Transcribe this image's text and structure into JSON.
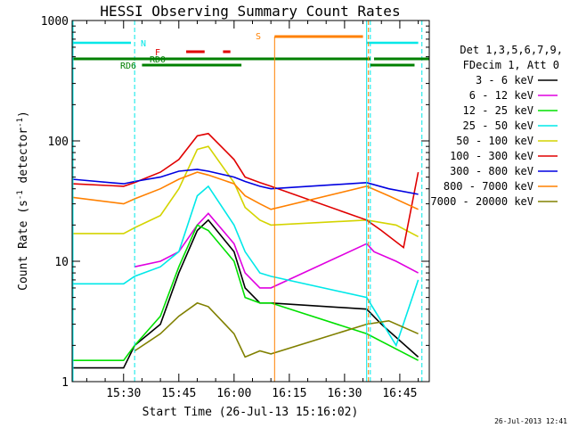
{
  "chart_data": {
    "type": "line",
    "title": "HESSI Observing Summary Count Rates",
    "xlabel": "Start Time (26-Jul-13 15:16:02)",
    "ylabel": "Count Rate (s⁻¹ detector⁻¹)",
    "ylabel_parts": {
      "pre": "Count Rate (s",
      "sup1": "-1",
      "mid": " detector",
      "sup2": "-1",
      "post": ")"
    },
    "y_scale": "log",
    "ylim": [
      1,
      1000
    ],
    "y_ticks": [
      {
        "value": 1,
        "label": "1"
      },
      {
        "value": 10,
        "label": "10"
      },
      {
        "value": 100,
        "label": "100"
      },
      {
        "value": 1000,
        "label": "1000"
      }
    ],
    "xlim": [
      "15:16:02",
      "16:53:00"
    ],
    "x_ticks": [
      "15:30",
      "15:45",
      "16:00",
      "16:15",
      "16:30",
      "16:45"
    ],
    "timestamp": "26-Jul-2013 12:41",
    "legend_header": [
      "Det 1,3,5,6,7,9,",
      "FDecim 1, Att 0"
    ],
    "legend_position": "right",
    "series": [
      {
        "name": "3 - 6 keV",
        "color": "#000000",
        "x": [
          "15:16",
          "15:30",
          "15:33",
          "15:40",
          "15:45",
          "15:50",
          "15:53",
          "16:00",
          "16:03",
          "16:07",
          "16:10",
          "16:36",
          "16:40",
          "16:50"
        ],
        "values": [
          1.3,
          1.3,
          2.0,
          3.0,
          8.0,
          18,
          22,
          12,
          6,
          4.5,
          4.5,
          4.0,
          3.0,
          1.6
        ]
      },
      {
        "name": "6 - 12 keV",
        "color": "#e000e0",
        "x": [
          "15:33",
          "15:40",
          "15:45",
          "15:50",
          "15:53",
          "16:00",
          "16:03",
          "16:07",
          "16:10",
          "16:36",
          "16:38",
          "16:44",
          "16:50"
        ],
        "values": [
          9,
          10,
          12,
          20,
          25,
          14,
          8,
          6,
          6,
          14,
          12,
          10,
          8
        ]
      },
      {
        "name": "12 - 25 keV",
        "color": "#00e000",
        "x": [
          "15:16",
          "15:30",
          "15:33",
          "15:40",
          "15:45",
          "15:50",
          "15:53",
          "16:00",
          "16:03",
          "16:07",
          "16:10",
          "16:36",
          "16:50"
        ],
        "values": [
          1.5,
          1.5,
          2.0,
          3.5,
          9,
          20,
          18,
          10,
          5,
          4.5,
          4.5,
          2.5,
          1.5
        ]
      },
      {
        "name": "25 - 50 keV",
        "color": "#00e8e8",
        "x": [
          "15:16",
          "15:30",
          "15:33",
          "15:40",
          "15:45",
          "15:50",
          "15:53",
          "16:00",
          "16:03",
          "16:07",
          "16:10",
          "16:36",
          "16:44",
          "16:50"
        ],
        "values": [
          6.5,
          6.5,
          7.5,
          9,
          12,
          35,
          42,
          20,
          12,
          8,
          7.5,
          5,
          2,
          7
        ]
      },
      {
        "name": "50 - 100 keV",
        "color": "#d4d400",
        "x": [
          "15:16",
          "15:30",
          "15:33",
          "15:40",
          "15:45",
          "15:50",
          "15:53",
          "16:00",
          "16:03",
          "16:07",
          "16:10",
          "16:36",
          "16:44",
          "16:50"
        ],
        "values": [
          17,
          17,
          19,
          24,
          40,
          85,
          90,
          45,
          28,
          22,
          20,
          22,
          20,
          16
        ]
      },
      {
        "name": "100 - 300 keV",
        "color": "#e00000",
        "x": [
          "15:16",
          "15:30",
          "15:33",
          "15:40",
          "15:45",
          "15:50",
          "15:53",
          "16:00",
          "16:03",
          "16:07",
          "16:10",
          "16:36",
          "16:40",
          "16:46",
          "16:50"
        ],
        "values": [
          44,
          42,
          45,
          55,
          70,
          110,
          115,
          70,
          50,
          45,
          42,
          22,
          18,
          13,
          55
        ]
      },
      {
        "name": "300 - 800 keV",
        "color": "#0000e0",
        "x": [
          "15:16",
          "15:30",
          "15:33",
          "15:40",
          "15:45",
          "15:50",
          "15:53",
          "16:00",
          "16:03",
          "16:07",
          "16:10",
          "16:36",
          "16:42",
          "16:50"
        ],
        "values": [
          48,
          44,
          46,
          50,
          56,
          58,
          56,
          50,
          46,
          42,
          40,
          45,
          40,
          36
        ]
      },
      {
        "name": "800 - 7000 keV",
        "color": "#ff8000",
        "x": [
          "15:16",
          "15:30",
          "15:33",
          "15:40",
          "15:45",
          "15:50",
          "15:53",
          "16:00",
          "16:03",
          "16:07",
          "16:10",
          "16:36",
          "16:42",
          "16:50"
        ],
        "values": [
          34,
          30,
          33,
          40,
          48,
          55,
          52,
          44,
          35,
          30,
          27,
          42,
          35,
          27
        ]
      },
      {
        "name": "7000 - 20000 keV",
        "color": "#808000",
        "x": [
          "15:33",
          "15:40",
          "15:45",
          "15:50",
          "15:53",
          "16:00",
          "16:03",
          "16:07",
          "16:10",
          "16:36",
          "16:42",
          "16:50"
        ],
        "values": [
          1.8,
          2.5,
          3.5,
          4.5,
          4.2,
          2.5,
          1.6,
          1.8,
          1.7,
          3.0,
          3.2,
          2.5
        ]
      }
    ],
    "flags": [
      {
        "label": "N",
        "color": "#00e8e8"
      },
      {
        "label": "F",
        "color": "#e00000"
      },
      {
        "label": "RD0",
        "color": "#008000"
      },
      {
        "label": "RD6",
        "color": "#008000"
      },
      {
        "label": "S",
        "color": "#ff8000"
      }
    ]
  }
}
